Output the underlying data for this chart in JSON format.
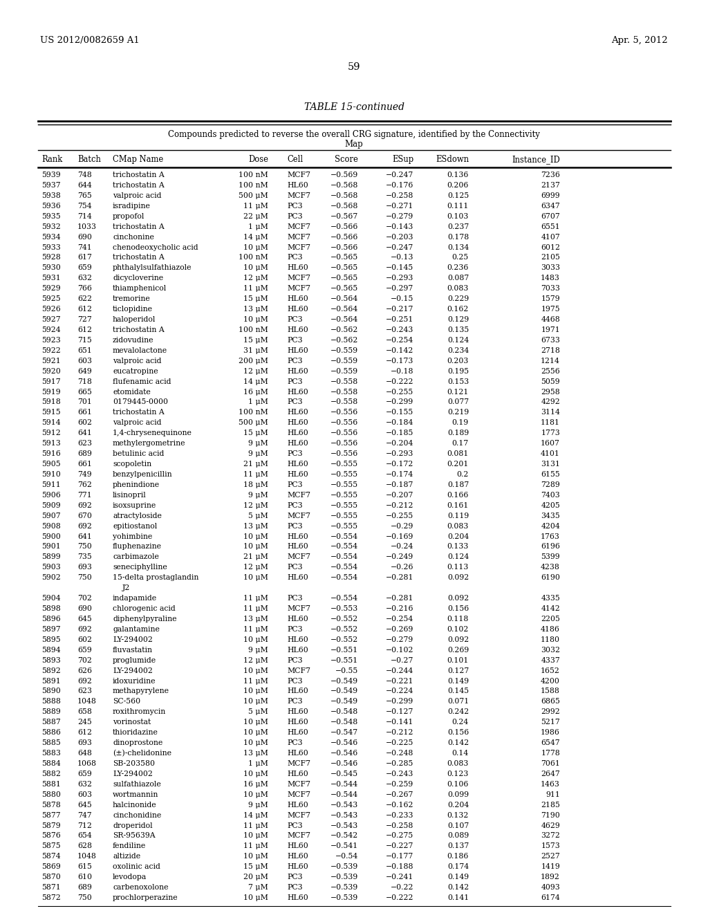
{
  "header_left": "US 2012/0082659 A1",
  "header_right": "Apr. 5, 2012",
  "page_number": "59",
  "table_title": "TABLE 15-continued",
  "table_subtitle": "Compounds predicted to reverse the overall CRG signature, identified by the Connectivity\nMap",
  "columns": [
    "Rank",
    "Batch",
    "CMap Name",
    "Dose",
    "Cell",
    "Score",
    "ESup",
    "ESdown",
    "Instance_ID"
  ],
  "rows": [
    [
      "5939",
      "748",
      "trichostatin A",
      "100 nM",
      "MCF7",
      "−0.569",
      "−0.247",
      "0.136",
      "7236"
    ],
    [
      "5937",
      "644",
      "trichostatin A",
      "100 nM",
      "HL60",
      "−0.568",
      "−0.176",
      "0.206",
      "2137"
    ],
    [
      "5938",
      "765",
      "valproic acid",
      "500 μM",
      "MCF7",
      "−0.568",
      "−0.258",
      "0.125",
      "6999"
    ],
    [
      "5936",
      "754",
      "isradipine",
      "11 μM",
      "PC3",
      "−0.568",
      "−0.271",
      "0.111",
      "6347"
    ],
    [
      "5935",
      "714",
      "propofol",
      "22 μM",
      "PC3",
      "−0.567",
      "−0.279",
      "0.103",
      "6707"
    ],
    [
      "5932",
      "1033",
      "trichostatin A",
      "1 μM",
      "MCF7",
      "−0.566",
      "−0.143",
      "0.237",
      "6551"
    ],
    [
      "5934",
      "690",
      "cinchonine",
      "14 μM",
      "MCF7",
      "−0.566",
      "−0.203",
      "0.178",
      "4107"
    ],
    [
      "5933",
      "741",
      "chenodeoxycholic acid",
      "10 μM",
      "MCF7",
      "−0.566",
      "−0.247",
      "0.134",
      "6012"
    ],
    [
      "5928",
      "617",
      "trichostatin A",
      "100 nM",
      "PC3",
      "−0.565",
      "−0.13",
      "0.25",
      "2105"
    ],
    [
      "5930",
      "659",
      "phthalylsulfathiazole",
      "10 μM",
      "HL60",
      "−0.565",
      "−0.145",
      "0.236",
      "3033"
    ],
    [
      "5931",
      "632",
      "dicycloverine",
      "12 μM",
      "MCF7",
      "−0.565",
      "−0.293",
      "0.087",
      "1483"
    ],
    [
      "5929",
      "766",
      "thiamphenicol",
      "11 μM",
      "MCF7",
      "−0.565",
      "−0.297",
      "0.083",
      "7033"
    ],
    [
      "5925",
      "622",
      "tremorine",
      "15 μM",
      "HL60",
      "−0.564",
      "−0.15",
      "0.229",
      "1579"
    ],
    [
      "5926",
      "612",
      "ticlopidine",
      "13 μM",
      "HL60",
      "−0.564",
      "−0.217",
      "0.162",
      "1975"
    ],
    [
      "5927",
      "727",
      "haloperidol",
      "10 μM",
      "PC3",
      "−0.564",
      "−0.251",
      "0.129",
      "4468"
    ],
    [
      "5924",
      "612",
      "trichostatin A",
      "100 nM",
      "HL60",
      "−0.562",
      "−0.243",
      "0.135",
      "1971"
    ],
    [
      "5923",
      "715",
      "zidovudine",
      "15 μM",
      "PC3",
      "−0.562",
      "−0.254",
      "0.124",
      "6733"
    ],
    [
      "5922",
      "651",
      "mevalolactone",
      "31 μM",
      "HL60",
      "−0.559",
      "−0.142",
      "0.234",
      "2718"
    ],
    [
      "5921",
      "603",
      "valproic acid",
      "200 μM",
      "PC3",
      "−0.559",
      "−0.173",
      "0.203",
      "1214"
    ],
    [
      "5920",
      "649",
      "eucatropine",
      "12 μM",
      "HL60",
      "−0.559",
      "−0.18",
      "0.195",
      "2556"
    ],
    [
      "5917",
      "718",
      "flufenamic acid",
      "14 μM",
      "PC3",
      "−0.558",
      "−0.222",
      "0.153",
      "5059"
    ],
    [
      "5919",
      "665",
      "etomidate",
      "16 μM",
      "HL60",
      "−0.558",
      "−0.255",
      "0.121",
      "2958"
    ],
    [
      "5918",
      "701",
      "0179445-0000",
      "1 μM",
      "PC3",
      "−0.558",
      "−0.299",
      "0.077",
      "4292"
    ],
    [
      "5915",
      "661",
      "trichostatin A",
      "100 nM",
      "HL60",
      "−0.556",
      "−0.155",
      "0.219",
      "3114"
    ],
    [
      "5914",
      "602",
      "valproic acid",
      "500 μM",
      "HL60",
      "−0.556",
      "−0.184",
      "0.19",
      "1181"
    ],
    [
      "5912",
      "641",
      "1,4-chrysenequinone",
      "15 μM",
      "HL60",
      "−0.556",
      "−0.185",
      "0.189",
      "1773"
    ],
    [
      "5913",
      "623",
      "methylergometrine",
      "9 μM",
      "HL60",
      "−0.556",
      "−0.204",
      "0.17",
      "1607"
    ],
    [
      "5916",
      "689",
      "betulinic acid",
      "9 μM",
      "PC3",
      "−0.556",
      "−0.293",
      "0.081",
      "4101"
    ],
    [
      "5905",
      "661",
      "scopoletin",
      "21 μM",
      "HL60",
      "−0.555",
      "−0.172",
      "0.201",
      "3131"
    ],
    [
      "5910",
      "749",
      "benzylpenicillin",
      "11 μM",
      "HL60",
      "−0.555",
      "−0.174",
      "0.2",
      "6155"
    ],
    [
      "5911",
      "762",
      "phenindione",
      "18 μM",
      "PC3",
      "−0.555",
      "−0.187",
      "0.187",
      "7289"
    ],
    [
      "5906",
      "771",
      "lisinopril",
      "9 μM",
      "MCF7",
      "−0.555",
      "−0.207",
      "0.166",
      "7403"
    ],
    [
      "5909",
      "692",
      "isoxsuprine",
      "12 μM",
      "PC3",
      "−0.555",
      "−0.212",
      "0.161",
      "4205"
    ],
    [
      "5907",
      "670",
      "atractyloside",
      "5 μM",
      "MCF7",
      "−0.555",
      "−0.255",
      "0.119",
      "3435"
    ],
    [
      "5908",
      "692",
      "epitiostanol",
      "13 μM",
      "PC3",
      "−0.555",
      "−0.29",
      "0.083",
      "4204"
    ],
    [
      "5900",
      "641",
      "yohimbine",
      "10 μM",
      "HL60",
      "−0.554",
      "−0.169",
      "0.204",
      "1763"
    ],
    [
      "5901",
      "750",
      "fluphenazine",
      "10 μM",
      "HL60",
      "−0.554",
      "−0.24",
      "0.133",
      "6196"
    ],
    [
      "5899",
      "735",
      "carbimazole",
      "21 μM",
      "MCF7",
      "−0.554",
      "−0.249",
      "0.124",
      "5399"
    ],
    [
      "5903",
      "693",
      "seneciphylline",
      "12 μM",
      "PC3",
      "−0.554",
      "−0.26",
      "0.113",
      "4238"
    ],
    [
      "5902",
      "750",
      "15-delta prostaglandin\nJ2",
      "10 μM",
      "HL60",
      "−0.554",
      "−0.281",
      "0.092",
      "6190"
    ],
    [
      "5904",
      "702",
      "indapamide",
      "11 μM",
      "PC3",
      "−0.554",
      "−0.281",
      "0.092",
      "4335"
    ],
    [
      "5898",
      "690",
      "chlorogenic acid",
      "11 μM",
      "MCF7",
      "−0.553",
      "−0.216",
      "0.156",
      "4142"
    ],
    [
      "5896",
      "645",
      "diphenylpyraline",
      "13 μM",
      "HL60",
      "−0.552",
      "−0.254",
      "0.118",
      "2205"
    ],
    [
      "5897",
      "692",
      "galantamine",
      "11 μM",
      "PC3",
      "−0.552",
      "−0.269",
      "0.102",
      "4186"
    ],
    [
      "5895",
      "602",
      "LY-294002",
      "10 μM",
      "HL60",
      "−0.552",
      "−0.279",
      "0.092",
      "1180"
    ],
    [
      "5894",
      "659",
      "fluvastatin",
      "9 μM",
      "HL60",
      "−0.551",
      "−0.102",
      "0.269",
      "3032"
    ],
    [
      "5893",
      "702",
      "proglumide",
      "12 μM",
      "PC3",
      "−0.551",
      "−0.27",
      "0.101",
      "4337"
    ],
    [
      "5892",
      "626",
      "LY-294002",
      "10 μM",
      "MCF7",
      "−0.55",
      "−0.244",
      "0.127",
      "1652"
    ],
    [
      "5891",
      "692",
      "idoxuridine",
      "11 μM",
      "PC3",
      "−0.549",
      "−0.221",
      "0.149",
      "4200"
    ],
    [
      "5890",
      "623",
      "methapyrylene",
      "10 μM",
      "HL60",
      "−0.549",
      "−0.224",
      "0.145",
      "1588"
    ],
    [
      "5888",
      "1048",
      "SC-560",
      "10 μM",
      "PC3",
      "−0.549",
      "−0.299",
      "0.071",
      "6865"
    ],
    [
      "5889",
      "658",
      "roxithromycin",
      "5 μM",
      "HL60",
      "−0.548",
      "−0.127",
      "0.242",
      "2992"
    ],
    [
      "5887",
      "245",
      "vorinostat",
      "10 μM",
      "HL60",
      "−0.548",
      "−0.141",
      "0.24",
      "5217"
    ],
    [
      "5886",
      "612",
      "thioridazine",
      "10 μM",
      "HL60",
      "−0.547",
      "−0.212",
      "0.156",
      "1986"
    ],
    [
      "5885",
      "693",
      "dinoprostone",
      "10 μM",
      "PC3",
      "−0.546",
      "−0.225",
      "0.142",
      "6547"
    ],
    [
      "5883",
      "648",
      "(±)-chelidonine",
      "13 μM",
      "HL60",
      "−0.546",
      "−0.248",
      "0.14",
      "1778"
    ],
    [
      "5884",
      "1068",
      "SB-203580",
      "1 μM",
      "MCF7",
      "−0.546",
      "−0.285",
      "0.083",
      "7061"
    ],
    [
      "5882",
      "659",
      "LY-294002",
      "10 μM",
      "HL60",
      "−0.545",
      "−0.243",
      "0.123",
      "2647"
    ],
    [
      "5881",
      "632",
      "sulfathiazole",
      "16 μM",
      "MCF7",
      "−0.544",
      "−0.259",
      "0.106",
      "1463"
    ],
    [
      "5880",
      "603",
      "wortmannin",
      "10 μM",
      "MCF7",
      "−0.544",
      "−0.267",
      "0.099",
      "911"
    ],
    [
      "5878",
      "645",
      "halcinonide",
      "9 μM",
      "HL60",
      "−0.543",
      "−0.162",
      "0.204",
      "2185"
    ],
    [
      "5877",
      "747",
      "cinchonidine",
      "14 μM",
      "MCF7",
      "−0.543",
      "−0.233",
      "0.132",
      "7190"
    ],
    [
      "5879",
      "712",
      "droperidol",
      "11 μM",
      "PC3",
      "−0.543",
      "−0.258",
      "0.107",
      "4629"
    ],
    [
      "5876",
      "654",
      "SR-95639A",
      "10 μM",
      "MCF7",
      "−0.542",
      "−0.275",
      "0.089",
      "3272"
    ],
    [
      "5875",
      "628",
      "fendiline",
      "11 μM",
      "HL60",
      "−0.541",
      "−0.227",
      "0.137",
      "1573"
    ],
    [
      "5874",
      "1048",
      "altizide",
      "10 μM",
      "HL60",
      "−0.54",
      "−0.177",
      "0.186",
      "2527"
    ],
    [
      "5869",
      "615",
      "oxolinic acid",
      "15 μM",
      "HL60",
      "−0.539",
      "−0.188",
      "0.174",
      "1419"
    ],
    [
      "5870",
      "610",
      "levodopa",
      "20 μM",
      "PC3",
      "−0.539",
      "−0.241",
      "0.149",
      "1892"
    ],
    [
      "5871",
      "689",
      "carbenoxolone",
      "7 μM",
      "PC3",
      "−0.539",
      "−0.22",
      "0.142",
      "4093"
    ],
    [
      "5872",
      "750",
      "prochlorperazine",
      "10 μM",
      "HL60",
      "−0.539",
      "−0.222",
      "0.141",
      "6174"
    ]
  ]
}
